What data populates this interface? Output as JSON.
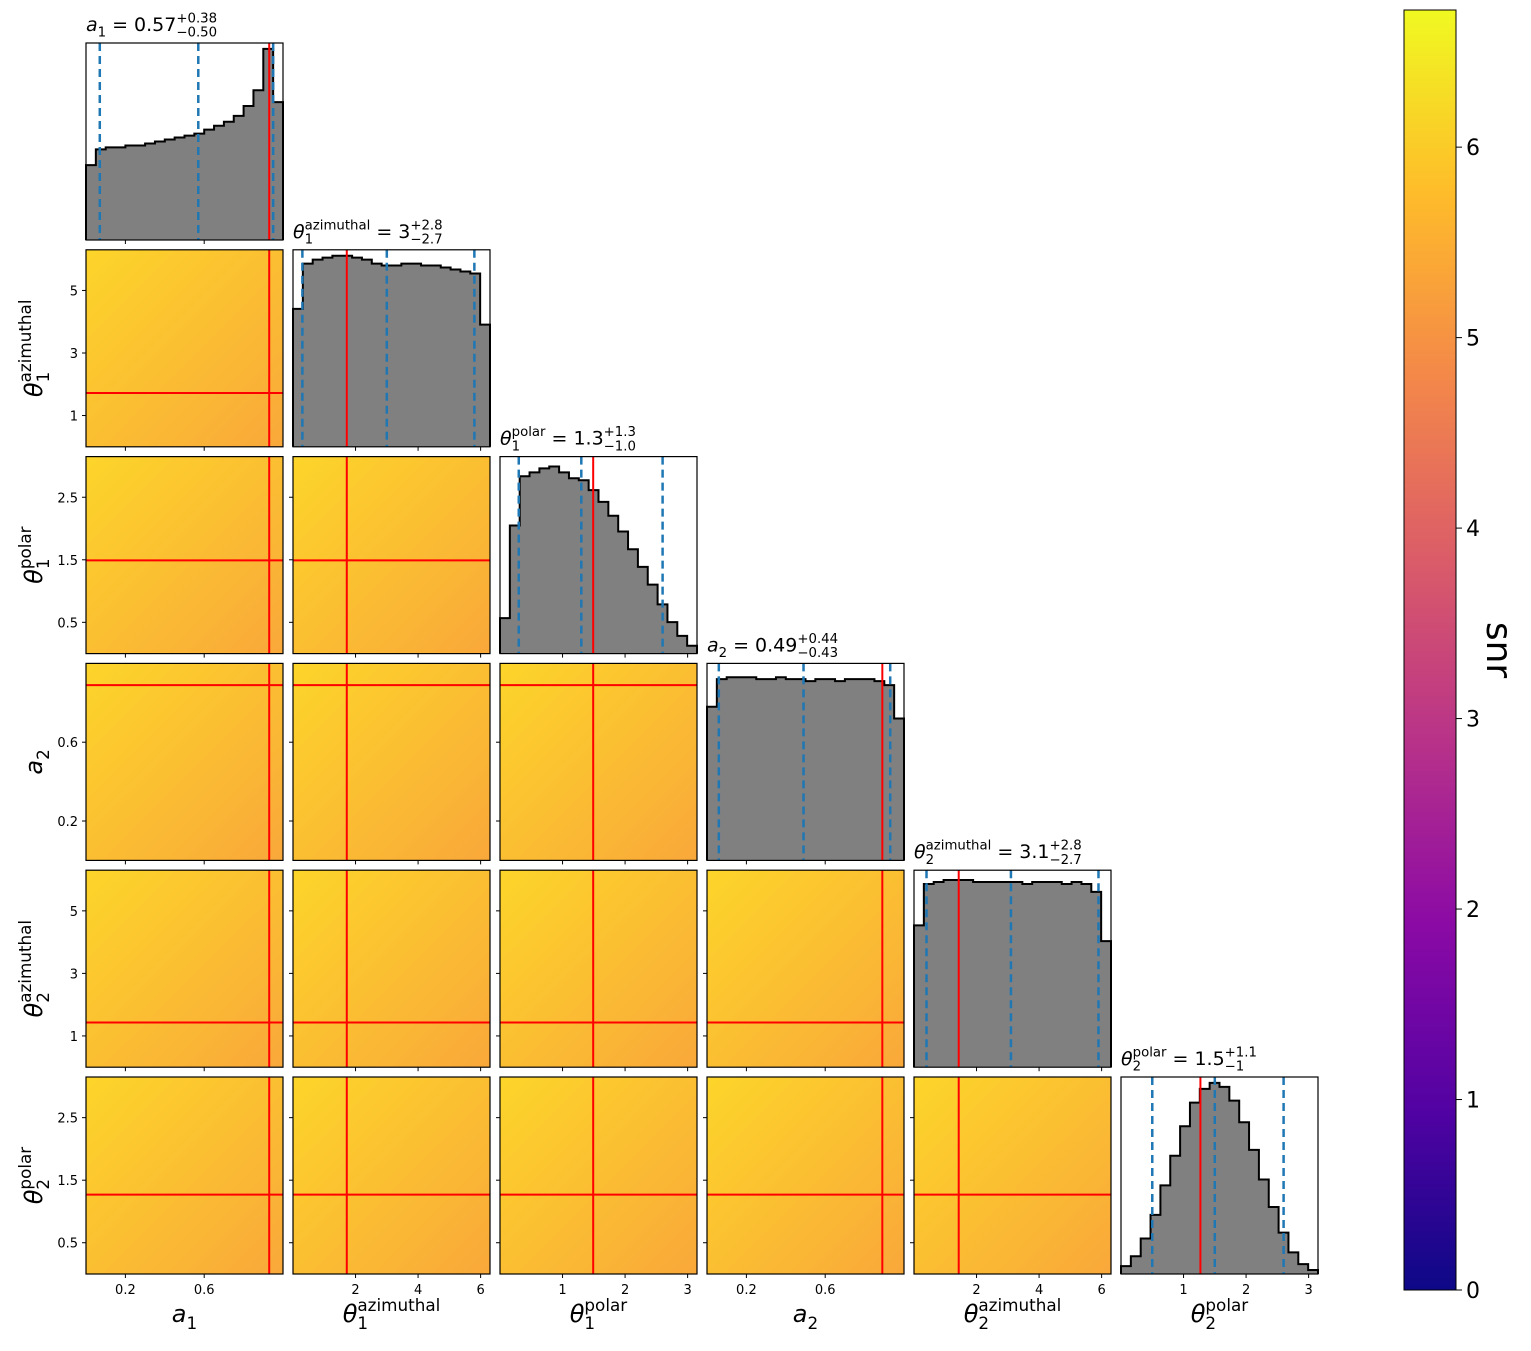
{
  "chart_data": {
    "type": "corner",
    "hist_ylim": [
      0,
      100
    ],
    "params": [
      {
        "label": {
          "symbol": "a",
          "sub": "1"
        },
        "title": {
          "value": "0.57",
          "relation": "=",
          "upper": "+0.38",
          "lower": "−0.50"
        },
        "truth": 0.93,
        "quantiles": [
          0.07,
          0.57,
          0.95
        ],
        "xlim": [
          0,
          1
        ],
        "ticks": [
          0.2,
          0.6
        ],
        "bins": [
          0,
          0.05,
          0.1,
          0.15,
          0.2,
          0.25,
          0.3,
          0.35,
          0.4,
          0.45,
          0.5,
          0.55,
          0.6,
          0.65,
          0.7,
          0.75,
          0.8,
          0.85,
          0.9,
          0.95,
          1
        ],
        "counts": [
          38,
          46,
          47,
          47,
          48,
          48,
          49,
          50,
          51,
          52,
          53,
          54,
          56,
          58,
          60,
          63,
          68,
          76,
          97,
          70
        ]
      },
      {
        "label": {
          "symbol": "θ",
          "sub": "1",
          "sup": "azimuthal"
        },
        "title": {
          "value": "3",
          "relation": "=",
          "upper": "+2.8",
          "lower": "−2.7"
        },
        "truth": 1.72,
        "quantiles": [
          0.3,
          3,
          5.8
        ],
        "xlim": [
          0,
          6.3
        ],
        "ticks": [
          1,
          3,
          5
        ],
        "xticks": [
          2,
          4,
          6
        ],
        "bins": [
          0,
          0.315,
          0.63,
          0.945,
          1.26,
          1.575,
          1.89,
          2.205,
          2.52,
          2.835,
          3.15,
          3.465,
          3.78,
          4.095,
          4.41,
          4.725,
          5.04,
          5.355,
          5.67,
          5.985,
          6.3
        ],
        "counts": [
          70,
          93,
          95,
          96,
          97,
          97,
          96,
          95,
          93,
          92,
          92,
          93,
          93,
          92,
          92,
          91,
          90,
          89,
          88,
          62
        ]
      },
      {
        "label": {
          "symbol": "θ",
          "sub": "1",
          "sup": "polar"
        },
        "title": {
          "value": "1.3",
          "relation": "=",
          "upper": "+1.3",
          "lower": "−1.0"
        },
        "truth": 1.49,
        "quantiles": [
          0.3,
          1.3,
          2.6
        ],
        "xlim": [
          0,
          3.15
        ],
        "ticks": [
          0.5,
          1.5,
          2.5
        ],
        "xticks": [
          1,
          2,
          3
        ],
        "bins": [
          0,
          0.1575,
          0.315,
          0.4725,
          0.63,
          0.7875,
          0.945,
          1.1025,
          1.26,
          1.4175,
          1.575,
          1.7325,
          1.89,
          2.0475,
          2.205,
          2.3625,
          2.52,
          2.6775,
          2.835,
          2.9925,
          3.15
        ],
        "counts": [
          18,
          65,
          90,
          92,
          94,
          95,
          92,
          89,
          88,
          83,
          77,
          70,
          62,
          53,
          44,
          35,
          25,
          16,
          9,
          4
        ]
      },
      {
        "label": {
          "symbol": "a",
          "sub": "2"
        },
        "title": {
          "value": "0.49",
          "relation": "=",
          "upper": "+0.44",
          "lower": "−0.43"
        },
        "truth": 0.89,
        "quantiles": [
          0.06,
          0.49,
          0.93
        ],
        "xlim": [
          0,
          1
        ],
        "ticks": [
          0.2,
          0.6
        ],
        "bins": [
          0,
          0.05,
          0.1,
          0.15,
          0.2,
          0.25,
          0.3,
          0.35,
          0.4,
          0.45,
          0.5,
          0.55,
          0.6,
          0.65,
          0.7,
          0.75,
          0.8,
          0.85,
          0.9,
          0.95,
          1
        ],
        "counts": [
          78,
          92,
          93,
          93,
          93,
          92,
          92,
          93,
          92,
          92,
          91,
          92,
          92,
          91,
          92,
          92,
          92,
          91,
          89,
          72
        ]
      },
      {
        "label": {
          "symbol": "θ",
          "sub": "2",
          "sup": "azimuthal"
        },
        "title": {
          "value": "3.1",
          "relation": "=",
          "upper": "+2.8",
          "lower": "−2.7"
        },
        "truth": 1.43,
        "quantiles": [
          0.4,
          3.1,
          5.9
        ],
        "xlim": [
          0,
          6.3
        ],
        "ticks": [
          1,
          3,
          5
        ],
        "xticks": [
          2,
          4,
          6
        ],
        "bins": [
          0,
          0.315,
          0.63,
          0.945,
          1.26,
          1.575,
          1.89,
          2.205,
          2.52,
          2.835,
          3.15,
          3.465,
          3.78,
          4.095,
          4.41,
          4.725,
          5.04,
          5.355,
          5.67,
          5.985,
          6.3
        ],
        "counts": [
          72,
          93,
          94,
          95,
          95,
          95,
          94,
          94,
          94,
          94,
          94,
          93,
          94,
          94,
          94,
          93,
          94,
          93,
          89,
          64
        ]
      },
      {
        "label": {
          "symbol": "θ",
          "sub": "2",
          "sup": "polar"
        },
        "title": {
          "value": "1.5",
          "relation": "=",
          "upper": "+1.1",
          "lower": "−1"
        },
        "truth": 1.27,
        "quantiles": [
          0.5,
          1.5,
          2.6
        ],
        "xlim": [
          0,
          3.15
        ],
        "ticks": [
          0.5,
          1.5,
          2.5
        ],
        "xticks": [
          1,
          2,
          3
        ],
        "bins": [
          0,
          0.1575,
          0.315,
          0.4725,
          0.63,
          0.7875,
          0.945,
          1.1025,
          1.26,
          1.4175,
          1.575,
          1.7325,
          1.89,
          2.0475,
          2.205,
          2.3625,
          2.52,
          2.6775,
          2.835,
          2.9925,
          3.15
        ],
        "counts": [
          4,
          9,
          18,
          30,
          45,
          60,
          75,
          87,
          94,
          97,
          95,
          88,
          77,
          63,
          48,
          34,
          21,
          11,
          5,
          2
        ]
      }
    ],
    "colorbar": {
      "label": "snr",
      "lim": [
        0,
        6.72
      ],
      "ticks": [
        0,
        1,
        2,
        3,
        4,
        5,
        6
      ],
      "colors": [
        "#0d0887",
        "#5302a3",
        "#8b0aa5",
        "#b83289",
        "#db5c68",
        "#f48849",
        "#febc2a",
        "#f0f921"
      ]
    },
    "colors": {
      "truth": "#ff0000",
      "quantile": "#1f77b4",
      "hist": "#808080",
      "density": [
        "#fdd52a",
        "#f9a83a"
      ]
    }
  }
}
